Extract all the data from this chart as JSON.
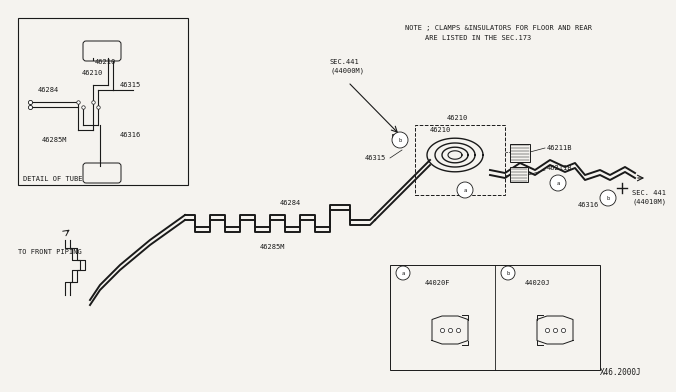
{
  "bg_color": "#f5f3ef",
  "line_color": "#1a1a1a",
  "text_color": "#1a1a1a",
  "note_line1": "NOTE ; CLAMPS &INSULATORS FOR FLOOR AND REAR",
  "note_line2": "ARE LISTED IN THE SEC.173",
  "detail_box_title": "DETAIL OF TUBE PIPING",
  "diagram_id": "X46.2000J",
  "to_front_piping": "TO FRONT PIPING",
  "sec441_44000m": "SEC.441\n(44000M)",
  "sec441_44010m": "SEC. 441\n(44010M)",
  "label_46210a": "46210",
  "label_46210b": "46210",
  "label_46315": "46315",
  "label_46284": "46284",
  "label_46285m": "46285M",
  "label_46316": "46316",
  "label_46211b_1": "46211B",
  "label_46211b_2": "46211B",
  "label_44020f": "44020F",
  "label_44020j": "44020J"
}
